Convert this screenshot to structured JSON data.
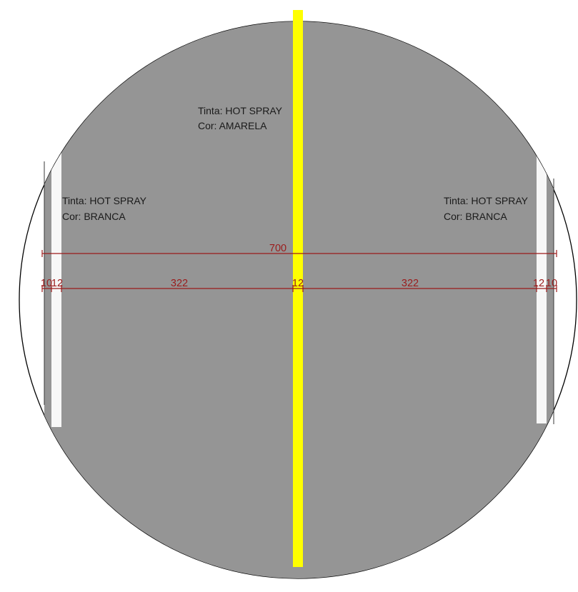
{
  "labels": {
    "center": {
      "line1": "Tinta: HOT SPRAY",
      "line2": "Cor: AMARELA"
    },
    "left": {
      "line1": "Tinta: HOT SPRAY",
      "line2": "Cor: BRANCA"
    },
    "right": {
      "line1": "Tinta: HOT SPRAY",
      "line2": "Cor: BRANCA"
    }
  },
  "dimensions": {
    "total": "700",
    "segments": [
      "10",
      "12",
      "322",
      "12",
      "322",
      "12",
      "10"
    ]
  },
  "colors": {
    "pavement": "#959595",
    "center_stripe": "#ffff00",
    "edge_stripe": "#f7f7f7",
    "outline": "#000000",
    "dimension": "#9b1b1b"
  }
}
